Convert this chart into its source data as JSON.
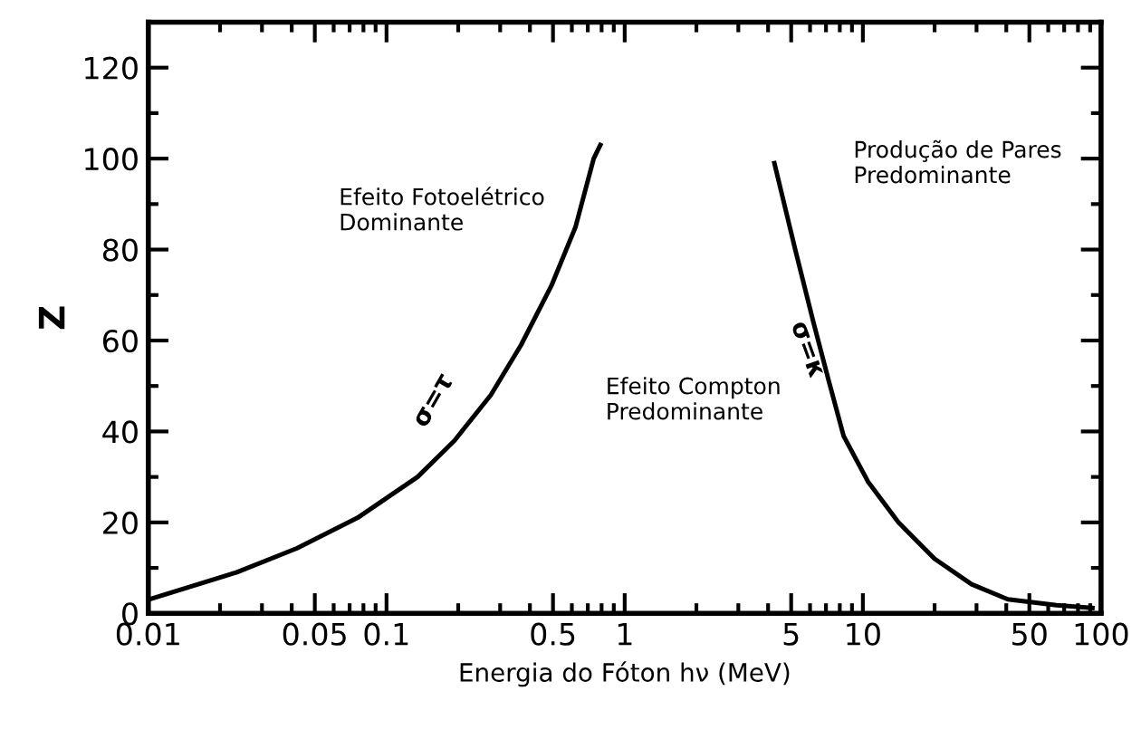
{
  "chart_data": {
    "type": "line",
    "xlabel": "Energia do Fóton hν (MeV)",
    "ylabel": "Z",
    "log": "x",
    "xlim": [
      0.01,
      100
    ],
    "ylim": [
      0,
      130
    ],
    "xticks": [
      0.01,
      0.05,
      0.1,
      0.5,
      1,
      5,
      10,
      50,
      100
    ],
    "yticks": [
      0,
      20,
      40,
      60,
      80,
      100,
      120
    ],
    "grid": false,
    "line_style": "solid",
    "marker": "none",
    "series": [
      {
        "color": "#000000",
        "x": [
          0.01,
          0.0234,
          0.042,
          0.0755,
          0.135,
          0.193,
          0.274,
          0.367,
          0.492,
          0.622,
          0.741,
          0.79
        ],
        "values": [
          3,
          9,
          14.3,
          21,
          30,
          38,
          48,
          59,
          72,
          85,
          100,
          103
        ]
      },
      {
        "color": "#000000",
        "x": [
          4.25,
          5.2,
          6.2,
          7.2,
          8.3,
          10.5,
          14.1,
          20,
          28.6,
          40.6,
          65,
          92
        ],
        "values": [
          99,
          80,
          64,
          51,
          39,
          29,
          20,
          12,
          6.4,
          3.1,
          1.8,
          1.2
        ]
      }
    ],
    "annotations": [
      "Efeito Fotoelétrico\nDominante",
      "Efeito Compton\nPredominante",
      "Produção de Pares\nPredominante",
      {
        "text": "σ=τ",
        "x": 0.2,
        "y": 40
      },
      {
        "text": "σ=κ",
        "x": 7.2,
        "y": 51
      }
    ]
  }
}
